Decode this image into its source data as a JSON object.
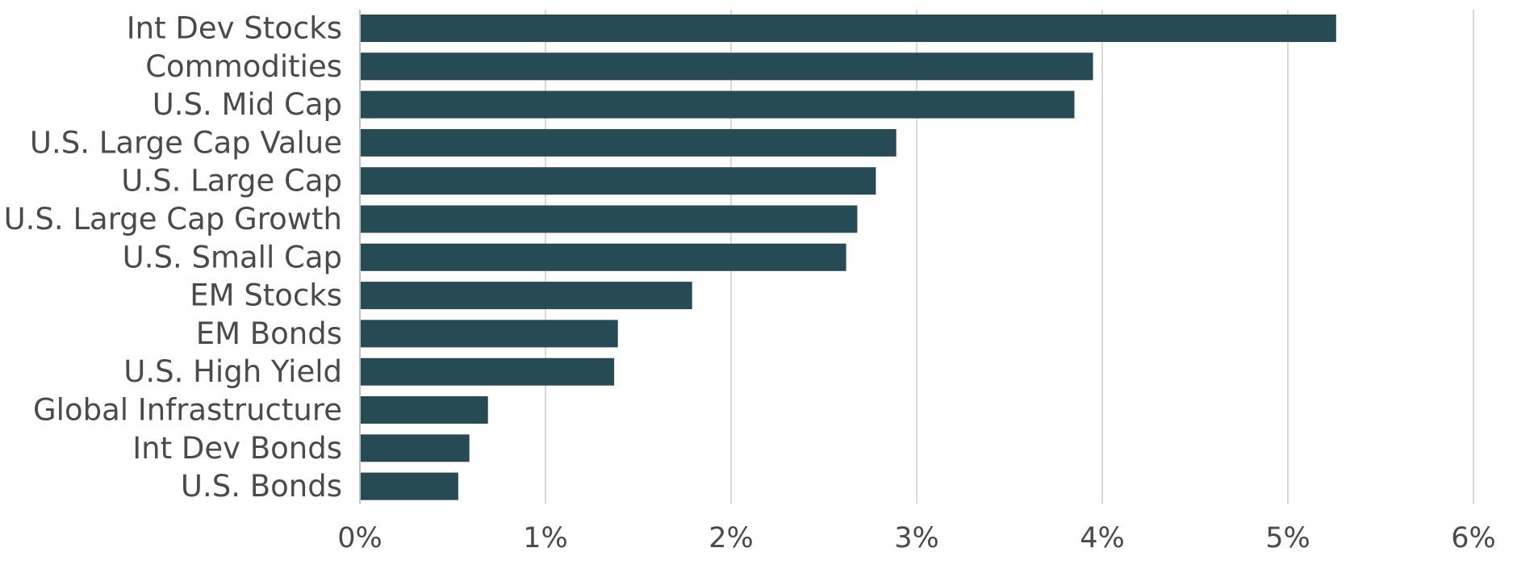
{
  "chart_data": {
    "type": "bar",
    "orientation": "horizontal",
    "title": "",
    "xlabel": "",
    "ylabel": "",
    "categories": [
      "Int Dev Stocks",
      "Commodities",
      "U.S. Mid Cap",
      "U.S. Large Cap Value",
      "U.S. Large Cap",
      "U.S. Large Cap Growth",
      "U.S. Small Cap",
      "EM Stocks",
      "EM Bonds",
      "U.S. High Yield",
      "Global Infrastructure",
      "Int Dev Bonds",
      "U.S. Bonds"
    ],
    "values": [
      5.26,
      3.95,
      3.85,
      2.89,
      2.78,
      2.68,
      2.62,
      1.79,
      1.39,
      1.37,
      0.69,
      0.59,
      0.53
    ],
    "xlim": [
      0,
      6
    ],
    "x_ticks": [
      "0%",
      "1%",
      "2%",
      "3%",
      "4%",
      "5%",
      "6%"
    ],
    "grid": "vertical",
    "legend": "none",
    "bar_color": "#264b55"
  }
}
